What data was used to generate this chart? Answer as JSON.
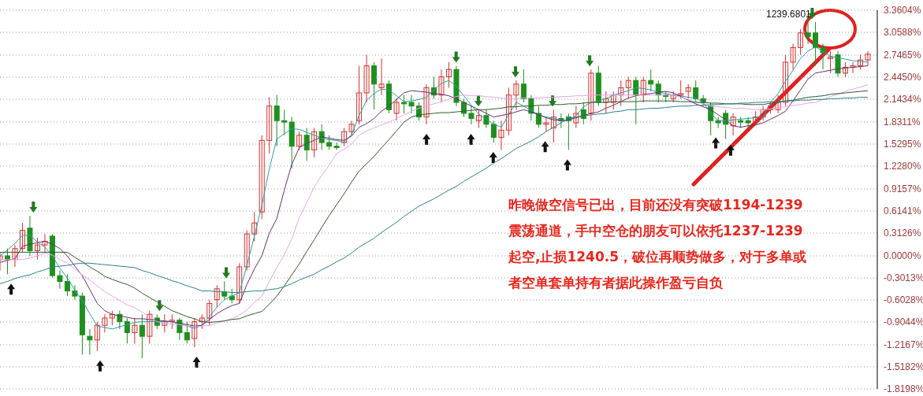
{
  "chart_data": {
    "type": "candlestick",
    "categories": [
      null,
      null,
      null,
      null,
      null,
      null,
      null,
      null,
      null,
      null,
      null,
      null,
      null,
      null,
      null,
      null,
      null,
      null,
      null,
      null,
      null,
      null,
      null,
      null,
      null,
      null,
      null,
      null,
      null,
      null,
      null,
      null,
      null,
      null,
      null,
      null,
      null,
      null,
      null,
      null,
      null,
      null,
      null,
      null,
      null,
      null,
      null,
      null,
      null,
      null,
      null,
      null,
      null,
      null,
      null,
      null,
      null,
      null,
      null,
      null,
      null,
      null,
      null,
      null,
      null,
      null,
      null,
      null,
      null,
      null,
      null,
      null,
      null,
      null,
      null,
      null,
      null,
      null,
      null,
      null,
      null,
      null,
      null,
      null,
      null,
      null,
      null,
      null,
      null,
      null,
      null,
      null,
      null,
      null,
      null,
      null,
      null,
      null,
      null,
      null,
      null,
      null,
      null,
      null,
      null,
      null,
      null,
      null,
      null,
      null,
      null,
      null,
      null,
      null,
      null,
      null,
      null
    ],
    "ohlc": [
      [
        -0.05,
        0.05,
        -0.2,
        0.0
      ],
      [
        0.0,
        0.1,
        -0.25,
        -0.05
      ],
      [
        -0.05,
        0.15,
        -0.15,
        0.1
      ],
      [
        0.1,
        0.45,
        0.05,
        0.35
      ],
      [
        0.38,
        0.55,
        0.0,
        0.07
      ],
      [
        0.07,
        0.25,
        -0.05,
        0.15
      ],
      [
        0.15,
        0.3,
        0.05,
        0.2
      ],
      [
        0.27,
        0.3,
        -0.3,
        -0.27
      ],
      [
        -0.27,
        -0.2,
        -0.45,
        -0.35
      ],
      [
        -0.35,
        -0.25,
        -0.55,
        -0.48
      ],
      [
        -0.48,
        -0.4,
        -0.6,
        -0.55
      ],
      [
        -0.55,
        -0.5,
        -1.35,
        -1.08
      ],
      [
        -1.1,
        -1.0,
        -1.35,
        -1.15
      ],
      [
        -1.15,
        -0.9,
        -1.3,
        -0.95
      ],
      [
        -0.95,
        -0.8,
        -1.05,
        -0.85
      ],
      [
        -0.85,
        -0.75,
        -0.95,
        -0.8
      ],
      [
        -0.8,
        -0.75,
        -1.0,
        -0.9
      ],
      [
        -0.9,
        -0.85,
        -1.2,
        -1.05
      ],
      [
        -1.05,
        -0.85,
        -1.2,
        -0.95
      ],
      [
        -0.95,
        -0.8,
        -1.4,
        -1.1
      ],
      [
        -1.1,
        -0.75,
        -1.2,
        -0.8
      ],
      [
        -0.85,
        -0.8,
        -1.0,
        -0.95
      ],
      [
        -0.95,
        -0.8,
        -1.05,
        -0.9
      ],
      [
        -0.9,
        -0.8,
        -1.0,
        -0.88
      ],
      [
        -0.88,
        -0.85,
        -1.15,
        -1.05
      ],
      [
        -1.05,
        -0.9,
        -1.2,
        -1.15
      ],
      [
        -1.13,
        -0.85,
        -1.25,
        -0.9
      ],
      [
        -0.9,
        -0.8,
        -1.0,
        -0.85
      ],
      [
        -0.85,
        -0.6,
        -0.95,
        -0.65
      ],
      [
        -0.6,
        -0.4,
        -0.7,
        -0.45
      ],
      [
        -0.5,
        -0.35,
        -0.6,
        -0.55
      ],
      [
        -0.55,
        -0.45,
        -0.65,
        -0.6
      ],
      [
        -0.6,
        -0.1,
        -0.65,
        -0.15
      ],
      [
        -0.15,
        0.35,
        -0.2,
        0.3
      ],
      [
        0.3,
        0.6,
        0.2,
        0.45
      ],
      [
        0.6,
        1.65,
        0.5,
        1.58
      ],
      [
        1.58,
        2.17,
        1.4,
        2.05
      ],
      [
        2.05,
        2.2,
        1.5,
        1.85
      ],
      [
        1.85,
        2.0,
        1.65,
        1.83
      ],
      [
        1.83,
        1.9,
        1.2,
        1.5
      ],
      [
        1.5,
        1.7,
        1.45,
        1.65
      ],
      [
        1.65,
        1.75,
        1.3,
        1.45
      ],
      [
        1.45,
        1.75,
        1.35,
        1.7
      ],
      [
        1.7,
        1.8,
        1.45,
        1.55
      ],
      [
        1.55,
        1.65,
        1.45,
        1.5
      ],
      [
        1.5,
        1.55,
        1.45,
        1.48
      ],
      [
        1.55,
        1.75,
        1.5,
        1.7
      ],
      [
        1.7,
        1.85,
        1.65,
        1.8
      ],
      [
        1.85,
        2.6,
        1.8,
        2.23
      ],
      [
        2.23,
        2.75,
        2.1,
        2.6
      ],
      [
        2.6,
        2.65,
        2.0,
        2.35
      ],
      [
        2.3,
        2.7,
        2.2,
        2.35
      ],
      [
        2.35,
        2.4,
        1.95,
        2.0
      ],
      [
        1.95,
        2.15,
        1.85,
        2.1
      ],
      [
        2.1,
        2.2,
        1.95,
        2.08
      ],
      [
        2.1,
        2.2,
        1.95,
        2.05
      ],
      [
        2.05,
        2.1,
        1.85,
        1.9
      ],
      [
        1.9,
        2.35,
        1.8,
        2.3
      ],
      [
        2.3,
        2.45,
        2.15,
        2.2
      ],
      [
        2.2,
        2.55,
        2.1,
        2.45
      ],
      [
        2.45,
        2.65,
        2.3,
        2.55
      ],
      [
        2.55,
        2.6,
        2.05,
        2.1
      ],
      [
        2.1,
        2.15,
        1.9,
        1.95
      ],
      [
        1.95,
        2.05,
        1.8,
        1.88
      ],
      [
        1.85,
        2.0,
        1.75,
        1.92
      ],
      [
        1.92,
        2.0,
        1.75,
        1.8
      ],
      [
        1.8,
        1.85,
        1.55,
        1.62
      ],
      [
        1.62,
        1.85,
        1.45,
        1.72
      ],
      [
        1.72,
        2.3,
        1.65,
        2.2
      ],
      [
        2.2,
        2.4,
        2.0,
        2.35
      ],
      [
        2.35,
        2.55,
        2.1,
        2.15
      ],
      [
        2.15,
        2.2,
        1.85,
        1.95
      ],
      [
        1.95,
        2.05,
        1.75,
        1.8
      ],
      [
        1.8,
        1.9,
        1.7,
        1.82
      ],
      [
        1.75,
        2.0,
        1.55,
        1.9
      ],
      [
        1.88,
        1.95,
        1.75,
        1.85
      ],
      [
        1.9,
        1.95,
        1.45,
        1.85
      ],
      [
        1.82,
        2.05,
        1.75,
        1.95
      ],
      [
        2.0,
        2.1,
        1.8,
        1.88
      ],
      [
        1.95,
        2.55,
        1.85,
        2.5
      ],
      [
        2.5,
        2.6,
        2.05,
        2.1
      ],
      [
        2.1,
        2.25,
        1.95,
        2.15
      ],
      [
        2.1,
        2.25,
        2.0,
        2.2
      ],
      [
        2.2,
        2.4,
        2.05,
        2.3
      ],
      [
        2.3,
        2.45,
        2.15,
        2.4
      ],
      [
        2.4,
        2.45,
        1.8,
        2.2
      ],
      [
        2.2,
        2.45,
        2.1,
        2.4
      ],
      [
        2.4,
        2.55,
        2.25,
        2.35
      ],
      [
        2.35,
        2.4,
        2.1,
        2.2
      ],
      [
        2.2,
        2.25,
        2.1,
        2.18
      ],
      [
        2.15,
        2.25,
        2.1,
        2.2
      ],
      [
        2.2,
        2.4,
        2.15,
        2.22
      ],
      [
        2.25,
        2.35,
        2.15,
        2.3
      ],
      [
        2.3,
        2.4,
        2.1,
        2.15
      ],
      [
        2.15,
        2.2,
        2.05,
        2.1
      ],
      [
        2.05,
        2.1,
        1.65,
        1.85
      ],
      [
        1.85,
        1.9,
        1.75,
        1.82
      ],
      [
        1.95,
        2.0,
        1.6,
        1.8
      ],
      [
        1.78,
        1.95,
        1.65,
        1.9
      ],
      [
        1.85,
        1.9,
        1.75,
        1.83
      ],
      [
        1.85,
        1.9,
        1.74,
        1.82
      ],
      [
        1.82,
        1.98,
        1.8,
        1.9
      ],
      [
        1.9,
        2.05,
        1.85,
        2.0
      ],
      [
        2.0,
        2.1,
        1.95,
        2.05
      ],
      [
        2.0,
        2.2,
        1.95,
        2.1
      ],
      [
        2.1,
        2.75,
        2.05,
        2.65
      ],
      [
        2.65,
        2.9,
        2.55,
        2.85
      ],
      [
        2.85,
        3.1,
        2.75,
        3.05
      ],
      [
        3.05,
        3.31,
        2.9,
        3.0
      ],
      [
        3.05,
        3.2,
        2.6,
        2.85
      ],
      [
        2.85,
        2.9,
        2.55,
        2.78
      ],
      [
        2.7,
        2.8,
        2.5,
        2.72
      ],
      [
        2.75,
        2.8,
        2.45,
        2.5
      ],
      [
        2.5,
        2.65,
        2.45,
        2.58
      ],
      [
        2.58,
        2.65,
        2.5,
        2.6
      ],
      [
        2.6,
        2.75,
        2.55,
        2.68
      ],
      [
        2.68,
        2.8,
        2.6,
        2.76
      ]
    ],
    "colors": [
      "#d93030",
      "#1f8f1f",
      "#d93030",
      "#d93030",
      "#1f8f1f",
      "#d93030",
      "#d93030",
      "#1f8f1f",
      "#1f8f1f",
      "#1f8f1f",
      "#1f8f1f",
      "#1f8f1f",
      "#1f8f1f",
      "#d93030",
      "#d93030",
      "#d93030",
      "#1f8f1f",
      "#1f8f1f",
      "#d93030",
      "#1f8f1f",
      "#d93030",
      "#1f8f1f",
      "#d93030",
      "#d93030",
      "#1f8f1f",
      "#1f8f1f",
      "#d93030",
      "#d93030",
      "#d93030",
      "#d93030",
      "#1f8f1f",
      "#1f8f1f",
      "#d93030",
      "#d93030",
      "#d93030",
      "#d93030",
      "#d93030",
      "#1f8f1f",
      "#1f8f1f",
      "#1f8f1f",
      "#d93030",
      "#1f8f1f",
      "#d93030",
      "#1f8f1f",
      "#1f8f1f",
      "#1f8f1f",
      "#d93030",
      "#d93030",
      "#d93030",
      "#d93030",
      "#1f8f1f",
      "#d93030",
      "#1f8f1f",
      "#d93030",
      "#1f8f1f",
      "#1f8f1f",
      "#1f8f1f",
      "#d93030",
      "#1f8f1f",
      "#d93030",
      "#d93030",
      "#1f8f1f",
      "#1f8f1f",
      "#1f8f1f",
      "#d93030",
      "#1f8f1f",
      "#1f8f1f",
      "#d93030",
      "#d93030",
      "#d93030",
      "#1f8f1f",
      "#1f8f1f",
      "#1f8f1f",
      "#d93030",
      "#d93030",
      "#1f8f1f",
      "#1f8f1f",
      "#d93030",
      "#1f8f1f",
      "#d93030",
      "#1f8f1f",
      "#d93030",
      "#d93030",
      "#d93030",
      "#d93030",
      "#1f8f1f",
      "#d93030",
      "#1f8f1f",
      "#1f8f1f",
      "#1f8f1f",
      "#d93030",
      "#d93030",
      "#d93030",
      "#1f8f1f",
      "#1f8f1f",
      "#1f8f1f",
      "#1f8f1f",
      "#1f8f1f",
      "#d93030",
      "#1f8f1f",
      "#1f8f1f",
      "#d93030",
      "#d93030",
      "#d93030",
      "#d93030",
      "#d93030",
      "#d93030",
      "#d93030",
      "#1f8f1f",
      "#1f8f1f",
      "#1f8f1f",
      "#d93030",
      "#1f8f1f",
      "#d93030",
      "#d93030",
      "#d93030",
      "#d93030"
    ],
    "series": [
      {
        "type": "line",
        "color": "#2aa0a0",
        "values": [
          0.0,
          0.08,
          0.17,
          0.28,
          0.28,
          0.19,
          0.12,
          0.0,
          -0.17,
          -0.3,
          -0.47,
          -0.61,
          -0.79,
          -0.96,
          -0.98,
          -1.0,
          -0.97,
          -0.94,
          -0.91,
          -0.9,
          -0.9,
          -0.9,
          -0.9,
          -0.9,
          -0.93,
          -0.96,
          -0.99,
          -0.95,
          -0.83,
          -0.7,
          -0.6,
          -0.55,
          -0.5,
          -0.13,
          0.27,
          0.69,
          1.19,
          1.6,
          1.67,
          1.74,
          1.73,
          1.69,
          1.65,
          1.61,
          1.59,
          1.58,
          1.55,
          1.66,
          1.92,
          2.13,
          2.22,
          2.28,
          2.27,
          2.19,
          2.11,
          2.12,
          2.14,
          2.17,
          2.27,
          2.36,
          2.4,
          2.32,
          2.19,
          2.06,
          1.94,
          1.87,
          1.8,
          1.76,
          1.93,
          2.1,
          2.05,
          1.99,
          1.93,
          1.9,
          1.88,
          1.86,
          1.85,
          1.92,
          2.04,
          2.1,
          2.12,
          2.15,
          2.2,
          2.23,
          2.26,
          2.3,
          2.29,
          2.27,
          2.24,
          2.22,
          2.2,
          2.19,
          2.17,
          2.16,
          2.1,
          1.95,
          1.85,
          1.85,
          1.86,
          1.87,
          1.88,
          1.89,
          1.9,
          2.1,
          2.22,
          2.39,
          2.54,
          2.7,
          2.8,
          2.86,
          2.8,
          2.73,
          2.71,
          2.69,
          2.67,
          2.66,
          2.65
        ]
      },
      {
        "type": "line",
        "color": "#6b2f6b",
        "values": [
          -0.09,
          -0.06,
          -0.04,
          0.13,
          0.16,
          0.18,
          0.2,
          0.16,
          0.1,
          0.0,
          -0.14,
          -0.27,
          -0.46,
          -0.65,
          -0.75,
          -0.8,
          -0.82,
          -0.84,
          -0.86,
          -0.86,
          -0.87,
          -0.88,
          -0.89,
          -0.9,
          -0.92,
          -0.94,
          -0.96,
          -0.95,
          -0.87,
          -0.79,
          -0.73,
          -0.68,
          -0.65,
          -0.39,
          -0.18,
          0.0,
          0.31,
          0.51,
          0.9,
          1.25,
          1.48,
          1.54,
          1.58,
          1.63,
          1.61,
          1.59,
          1.58,
          1.64,
          1.76,
          1.81,
          1.88,
          1.98,
          2.05,
          2.14,
          2.23,
          2.26,
          2.25,
          2.24,
          2.22,
          2.21,
          2.19,
          2.15,
          2.1,
          2.05,
          2.0,
          1.95,
          1.9,
          1.92,
          1.94,
          1.97,
          2.0,
          1.97,
          1.93,
          1.89,
          1.86,
          1.85,
          1.86,
          1.89,
          1.92,
          1.95,
          1.97,
          2.02,
          2.06,
          2.11,
          2.16,
          2.19,
          2.21,
          2.22,
          2.24,
          2.25,
          2.23,
          2.18,
          2.13,
          2.08,
          2.04,
          2.0,
          1.93,
          1.86,
          1.78,
          1.76,
          1.78,
          1.79,
          1.82,
          1.87,
          1.92,
          1.98,
          2.12,
          2.27,
          2.42,
          2.5,
          2.52,
          2.54,
          2.56,
          2.57,
          2.58,
          2.59,
          2.6
        ]
      },
      {
        "type": "line",
        "color": "#e6a6e6",
        "values": [
          -0.05,
          -0.05,
          -0.05,
          -0.05,
          -0.03,
          0.0,
          0.04,
          0.01,
          -0.05,
          -0.1,
          -0.18,
          -0.26,
          -0.33,
          -0.41,
          -0.49,
          -0.55,
          -0.61,
          -0.67,
          -0.71,
          -0.77,
          -0.83,
          -0.9,
          -0.92,
          -0.93,
          -0.94,
          -0.96,
          -0.97,
          -0.96,
          -0.95,
          -0.92,
          -0.89,
          -0.86,
          -0.81,
          -0.74,
          -0.64,
          -0.55,
          -0.35,
          -0.16,
          0.02,
          0.23,
          0.52,
          0.73,
          0.94,
          1.1,
          1.24,
          1.4,
          1.46,
          1.53,
          1.65,
          1.71,
          1.75,
          1.79,
          1.83,
          1.88,
          1.93,
          1.98,
          2.02,
          2.05,
          2.08,
          2.11,
          2.14,
          2.18,
          2.2,
          2.19,
          2.19,
          2.18,
          2.17,
          2.16,
          2.15,
          2.15,
          2.16,
          2.16,
          2.16,
          2.17,
          2.17,
          2.18,
          2.18,
          2.19,
          2.19,
          2.2,
          2.2,
          2.2,
          2.2,
          2.2,
          2.2,
          2.2,
          2.2,
          2.2,
          2.2,
          2.2,
          2.2,
          2.17,
          2.14,
          2.11,
          2.08,
          2.05,
          2.04,
          2.03,
          2.02,
          2.02,
          2.01,
          2.0,
          2.0,
          2.01,
          2.03,
          2.04,
          2.06,
          2.07,
          2.09,
          2.1,
          2.14,
          2.18,
          2.21,
          2.25,
          2.28,
          2.31,
          2.34
        ]
      },
      {
        "type": "line",
        "color": "#2f5a2f",
        "values": [
          0.05,
          0.05,
          0.05,
          0.05,
          0.05,
          0.05,
          0.05,
          0.05,
          0.05,
          0.05,
          -0.02,
          -0.08,
          -0.15,
          -0.21,
          -0.28,
          -0.32,
          -0.36,
          -0.39,
          -0.44,
          -0.51,
          -0.57,
          -0.63,
          -0.69,
          -0.75,
          -0.79,
          -0.83,
          -0.86,
          -0.9,
          -0.91,
          -0.9,
          -0.89,
          -0.87,
          -0.86,
          -0.82,
          -0.79,
          -0.76,
          -0.66,
          -0.55,
          -0.41,
          -0.26,
          -0.11,
          0.06,
          0.22,
          0.39,
          0.55,
          0.7,
          0.85,
          1.01,
          1.16,
          1.26,
          1.36,
          1.48,
          1.59,
          1.71,
          1.83,
          1.9,
          1.93,
          1.94,
          1.95,
          1.96,
          1.96,
          1.97,
          1.98,
          1.99,
          2.0,
          2.0,
          2.01,
          2.02,
          2.04,
          2.04,
          2.05,
          2.05,
          2.06,
          2.06,
          2.07,
          2.07,
          2.08,
          2.08,
          2.09,
          2.1,
          2.1,
          2.1,
          2.11,
          2.11,
          2.11,
          2.11,
          2.12,
          2.12,
          2.12,
          2.12,
          2.12,
          2.11,
          2.11,
          2.1,
          2.1,
          2.09,
          2.09,
          2.08,
          2.08,
          2.08,
          2.07,
          2.07,
          2.07,
          2.09,
          2.1,
          2.12,
          2.13,
          2.15,
          2.17,
          2.18,
          2.19,
          2.21,
          2.22,
          2.23,
          2.24,
          2.25,
          2.26
        ]
      },
      {
        "type": "line",
        "color": "#2c7f8a",
        "values": [
          -0.38,
          -0.35,
          -0.31,
          -0.28,
          -0.26,
          -0.22,
          -0.19,
          -0.15,
          -0.14,
          -0.13,
          -0.11,
          -0.1,
          -0.1,
          -0.11,
          -0.12,
          -0.13,
          -0.14,
          -0.15,
          -0.16,
          -0.2,
          -0.23,
          -0.27,
          -0.3,
          -0.34,
          -0.37,
          -0.41,
          -0.44,
          -0.48,
          -0.48,
          -0.49,
          -0.49,
          -0.5,
          -0.5,
          -0.49,
          -0.48,
          -0.48,
          -0.46,
          -0.45,
          -0.42,
          -0.38,
          -0.33,
          -0.29,
          -0.25,
          -0.19,
          -0.14,
          -0.08,
          -0.03,
          0.04,
          0.12,
          0.18,
          0.24,
          0.32,
          0.39,
          0.46,
          0.54,
          0.61,
          0.68,
          0.73,
          0.78,
          0.84,
          0.9,
          0.95,
          1.02,
          1.08,
          1.14,
          1.2,
          1.27,
          1.33,
          1.4,
          1.47,
          1.52,
          1.57,
          1.63,
          1.7,
          1.76,
          1.82,
          1.88,
          1.9,
          1.91,
          1.93,
          1.94,
          1.95,
          1.97,
          1.98,
          2.0,
          2.0,
          2.01,
          2.02,
          2.02,
          2.03,
          2.04,
          2.05,
          2.05,
          2.06,
          2.06,
          2.07,
          2.07,
          2.08,
          2.08,
          2.09,
          2.09,
          2.1,
          2.1,
          2.11,
          2.11,
          2.12,
          2.12,
          2.13,
          2.13,
          2.14,
          2.14,
          2.15,
          2.15,
          2.16,
          2.16,
          2.17,
          2.17
        ]
      }
    ],
    "ylim": [
      -1.8198,
      3.3604
    ],
    "yticks": [
      {
        "value": 3.3604,
        "label": "3.3604%"
      },
      {
        "value": 3.0588,
        "label": "3.0588%"
      },
      {
        "value": 2.7465,
        "label": "2.7465%"
      },
      {
        "value": 2.445,
        "label": "2.4450%"
      },
      {
        "value": 2.1434,
        "label": "2.1434%"
      },
      {
        "value": 1.8311,
        "label": "1.8311%"
      },
      {
        "value": 1.5295,
        "label": "1.5295%"
      },
      {
        "value": 1.228,
        "label": "1.2280%"
      },
      {
        "value": 0.9157,
        "label": "0.9157%"
      },
      {
        "value": 0.6141,
        "label": "0.6141%"
      },
      {
        "value": 0.3126,
        "label": "0.3126%"
      },
      {
        "value": 0,
        "label": "0.0000%"
      },
      {
        "value": -0.3013,
        "label": "-0.3013%"
      },
      {
        "value": -0.6028,
        "label": "-0.6028%"
      },
      {
        "value": -0.9044,
        "label": "-0.9044%"
      },
      {
        "value": -1.2167,
        "label": "-1.2167%"
      },
      {
        "value": -1.5182,
        "label": "-1.5182%"
      },
      {
        "value": -1.8198,
        "label": "-1.8198%"
      }
    ],
    "grid": "y",
    "tick_labels": "y",
    "annotations": [
      "1239.6801",
      "昨晚做空信号已出，目前还没有突破1194-1239",
      "震荡通道，手中空仓的朋友可以依托1237-1239",
      "起空,止损1240.5，破位再顺势做多，对于多单或",
      "者空单套单持有者据此操作盈亏自负"
    ]
  }
}
